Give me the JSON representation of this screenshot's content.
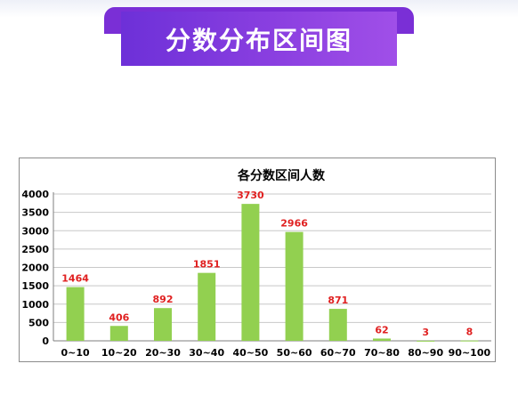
{
  "banner": {
    "title": "分数分布区间图"
  },
  "chart_data": {
    "type": "bar",
    "title": "各分数区间人数",
    "xlabel": "",
    "ylabel": "",
    "categories": [
      "0~10",
      "10~20",
      "20~30",
      "30~40",
      "40~50",
      "50~60",
      "60~70",
      "70~80",
      "80~90",
      "90~100"
    ],
    "values": [
      1464,
      406,
      892,
      1851,
      3730,
      2966,
      871,
      62,
      3,
      8
    ],
    "ylim": [
      0,
      4000
    ],
    "yticks": [
      0,
      500,
      1000,
      1500,
      2000,
      2500,
      3000,
      3500,
      4000
    ],
    "grid": true,
    "legend": "none",
    "colors": {
      "bar": "#92d050",
      "label": "#e02020",
      "grid": "#c8c8c8",
      "axis": "#7f7f7f",
      "text": "#000000"
    }
  }
}
